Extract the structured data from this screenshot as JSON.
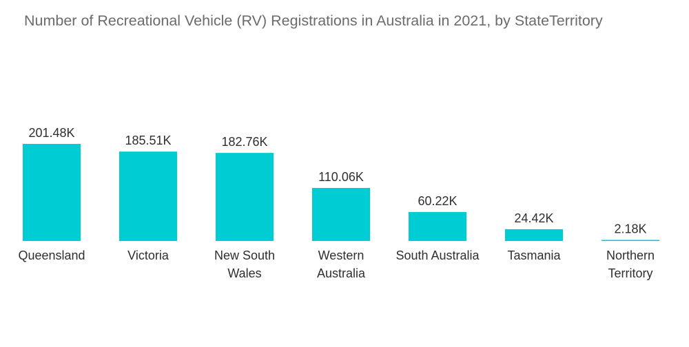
{
  "colors": {
    "bar": "#00CDD3",
    "title": "#6b6b6b",
    "text": "#2f2f2f",
    "background": "#ffffff"
  },
  "chart_data": {
    "type": "bar",
    "title": "Number of Recreational Vehicle (RV) Registrations in Australia in 2021, by StateTerritory",
    "xlabel": "",
    "ylabel": "",
    "grid": false,
    "ylim": [
      0,
      201.48
    ],
    "categories": [
      [
        "Queensland"
      ],
      [
        "Victoria"
      ],
      [
        "New South",
        "Wales"
      ],
      [
        "Western",
        "Australia"
      ],
      [
        "South Australia"
      ],
      [
        "Tasmania"
      ],
      [
        "Northern",
        "Territory"
      ]
    ],
    "values": [
      201.48,
      185.51,
      182.76,
      110.06,
      60.22,
      24.42,
      2.18
    ],
    "value_labels": [
      "201.48K",
      "185.51K",
      "182.76K",
      "110.06K",
      "60.22K",
      "24.42K",
      "2.18K"
    ],
    "unit": "K"
  }
}
